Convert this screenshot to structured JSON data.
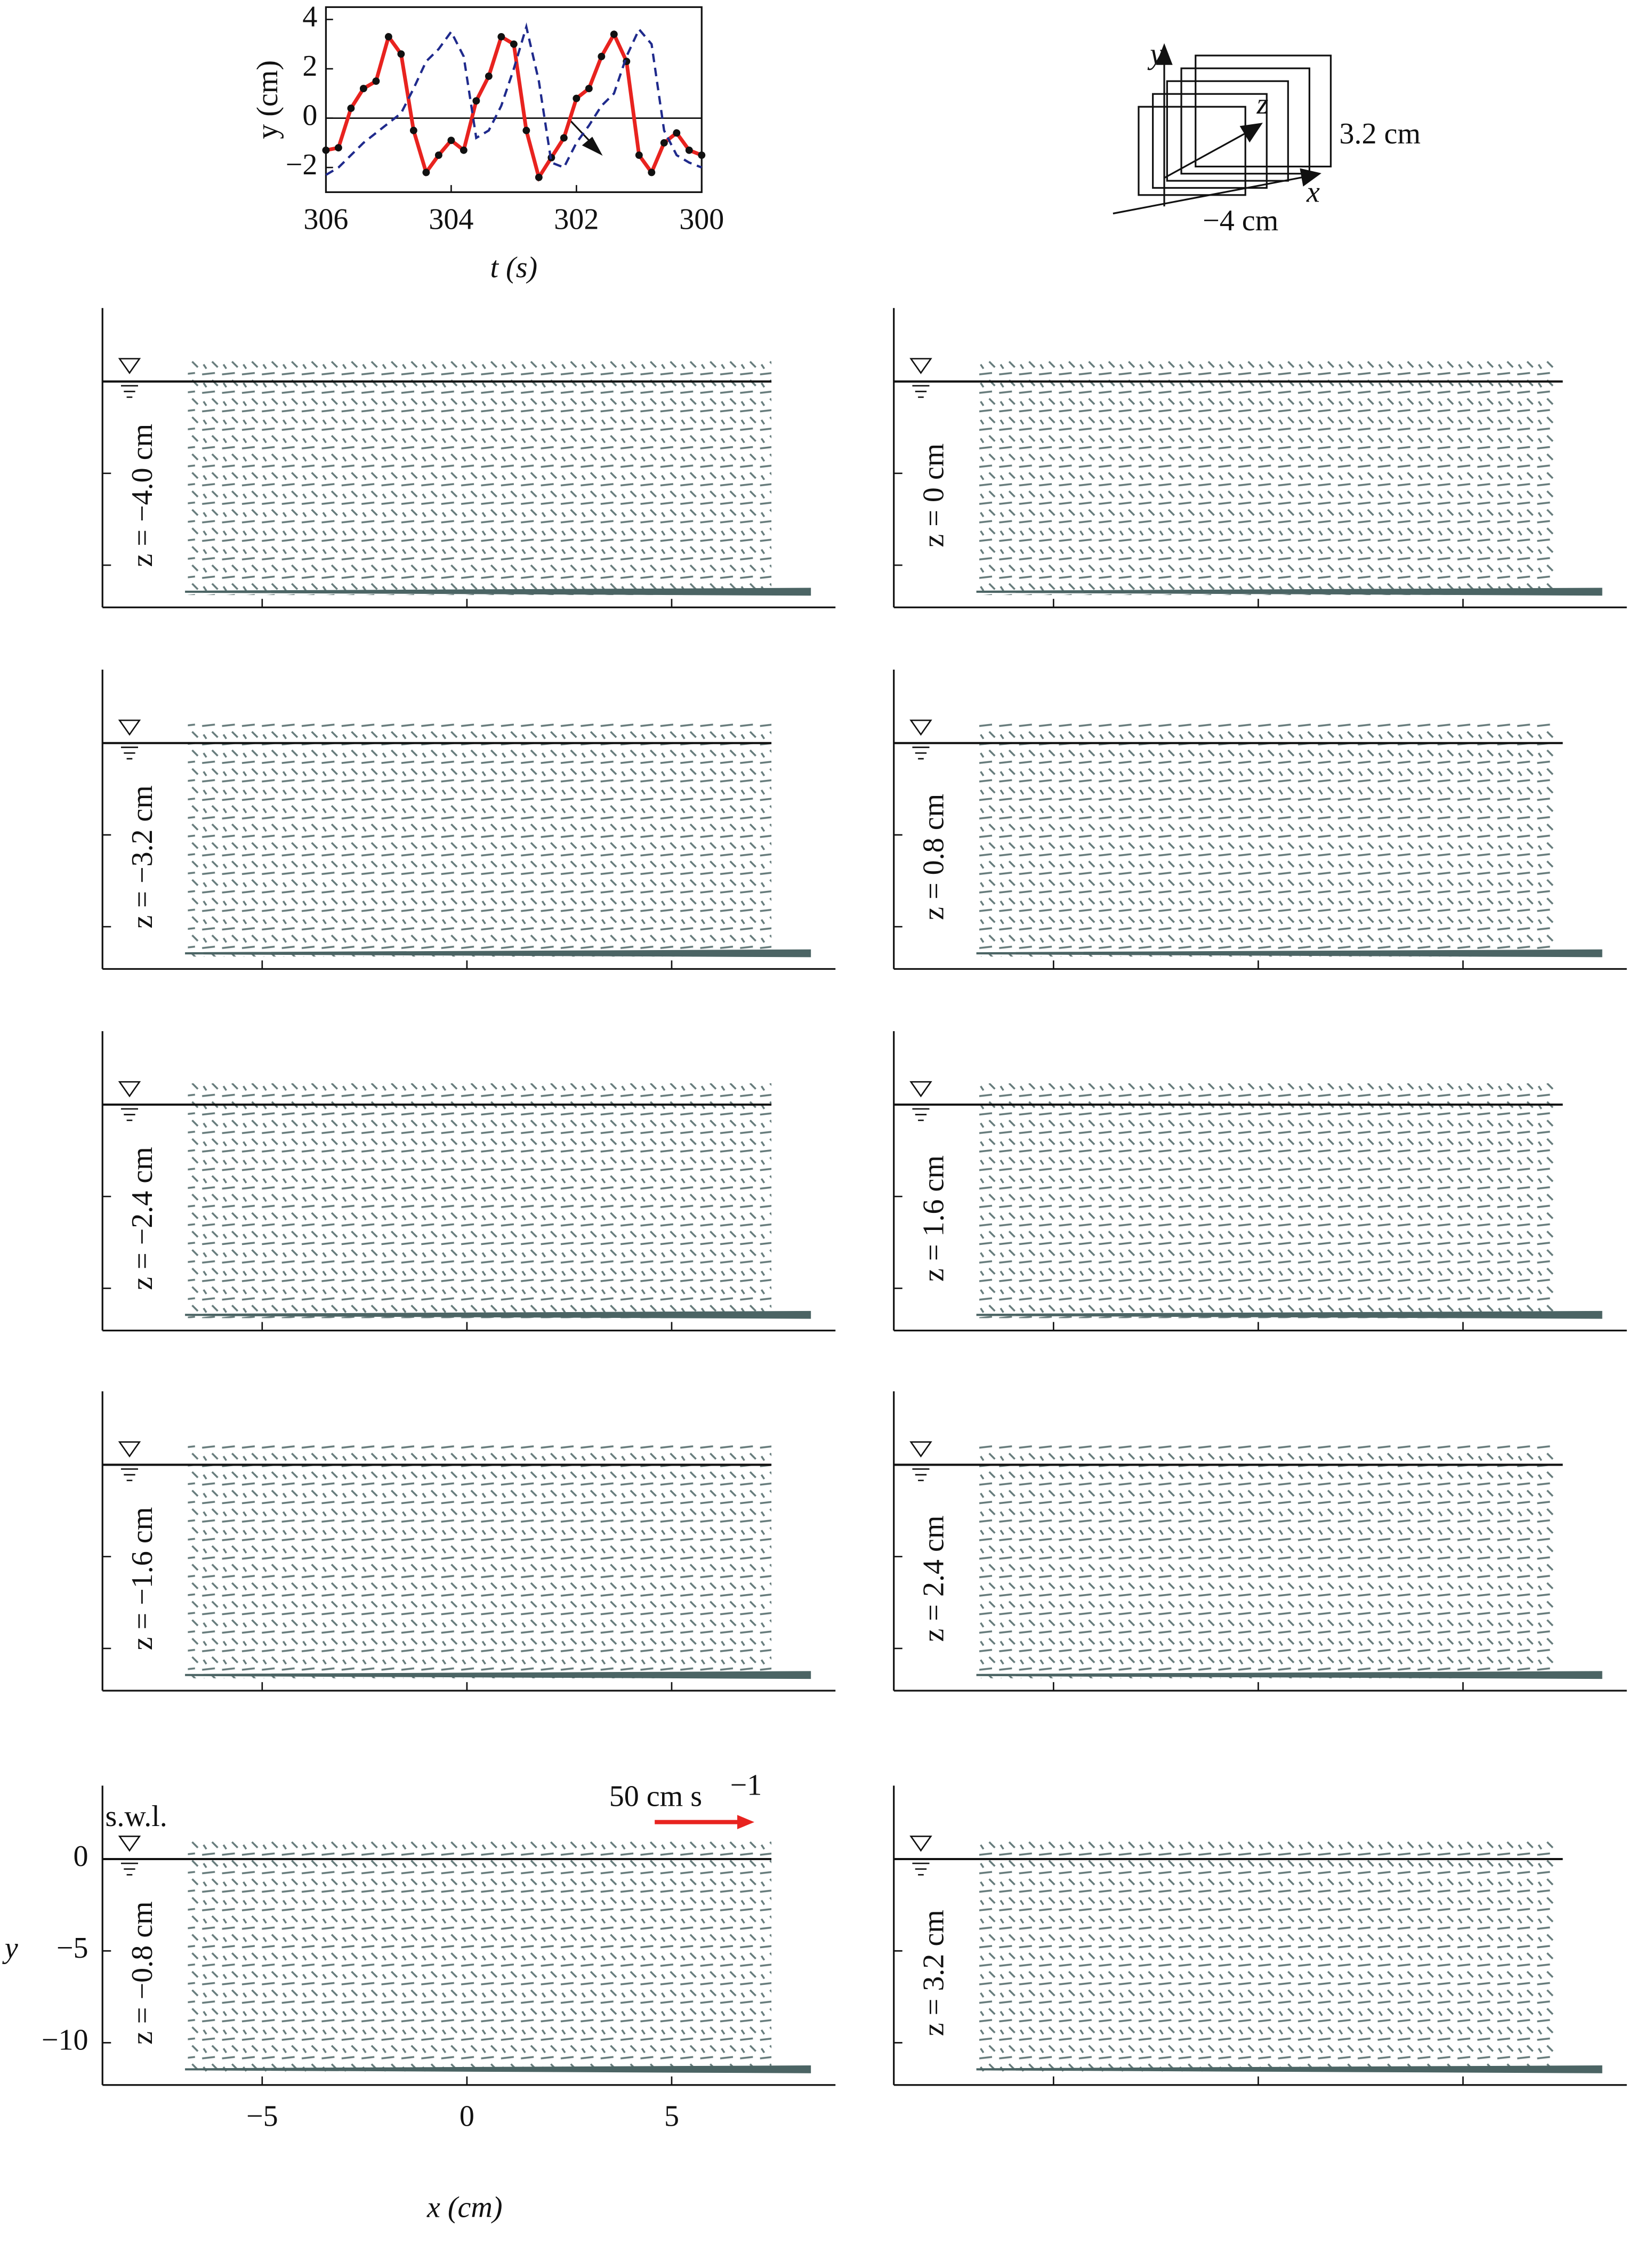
{
  "chart_data": [
    {
      "type": "line",
      "xlabel": "t (s)",
      "ylabel": "y (cm)",
      "x": [
        306,
        305.8,
        305.6,
        305.4,
        305.2,
        305,
        304.8,
        304.6,
        304.4,
        304.2,
        304,
        303.8,
        303.6,
        303.4,
        303.2,
        303,
        302.8,
        302.6,
        302.4,
        302.2,
        302,
        301.8,
        301.6,
        301.4,
        301.2,
        301,
        300.8,
        300.6,
        300.4,
        300.2,
        300
      ],
      "series": [
        {
          "color": "#e8231f",
          "values": [
            -1.3,
            -1.2,
            0.4,
            1.2,
            1.5,
            3.3,
            2.6,
            -0.5,
            -2.2,
            -1.5,
            -0.9,
            -1.3,
            0.7,
            1.7,
            3.3,
            3.0,
            -0.5,
            -2.4,
            -1.6,
            -0.8,
            0.8,
            1.2,
            2.5,
            3.4,
            2.3,
            -1.5,
            -2.2,
            -1.0,
            -0.6,
            -1.3,
            -1.5
          ]
        },
        {
          "color": "#1f2a8c",
          "values": [
            -2.3,
            -2.0,
            -1.5,
            -1.0,
            -0.6,
            -0.2,
            0.2,
            1.2,
            2.3,
            2.8,
            3.5,
            2.5,
            -0.8,
            -0.5,
            0.5,
            2.0,
            3.7,
            1.5,
            -1.8,
            -2.0,
            -1.0,
            -0.3,
            0.5,
            1.0,
            2.5,
            3.6,
            3.0,
            -0.5,
            -1.5,
            -1.8,
            -2.0
          ]
        }
      ],
      "xlim": [
        306,
        300
      ],
      "xticks": [
        306,
        304,
        302,
        300
      ],
      "ylim": [
        -3,
        4.5
      ],
      "yticks": [
        {
          "value": -2,
          "label": "−2"
        },
        0,
        2,
        4
      ]
    },
    {
      "type": "quiver",
      "xlabel": "x (cm)",
      "ylabel": "y",
      "panels": [
        "z = −4.0 cm",
        "z = −3.2 cm",
        "z = −2.4 cm",
        "z = −1.6 cm",
        "z = −0.8 cm",
        "z = 0 cm",
        "z = 0.8 cm",
        "z = 1.6 cm",
        "z = 2.4 cm",
        "z = 3.2 cm"
      ],
      "xlim": [
        -8.9,
        9
      ],
      "xticks": [
        {
          "value": -5,
          "label": "−5"
        },
        0,
        5
      ],
      "ylim": [
        -12.3,
        4
      ],
      "yticks": [
        {
          "value": -10,
          "label": "−10"
        },
        {
          "value": -5,
          "label": "−5"
        },
        0
      ],
      "annotation": "s.w.l.",
      "scale_value": 50,
      "scale_label": "50 cm s",
      "scale_exponent": "−1",
      "scale_color": "#e8231f"
    }
  ],
  "diagram": {
    "y": "y",
    "z": "z",
    "x": "x",
    "depth": "3.2 cm",
    "width": "−4 cm"
  }
}
